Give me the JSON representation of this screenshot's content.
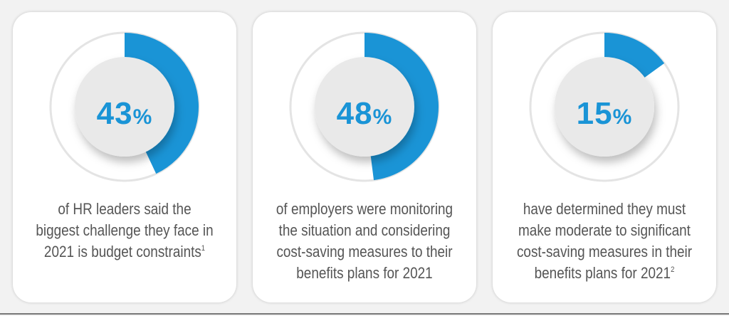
{
  "accent_color": "#1a94d6",
  "chart_data": {
    "type": "pie",
    "stats": [
      {
        "value": 43,
        "label": "43",
        "symbol": "%",
        "text": "of HR leaders said the biggest challenge they face in 2021 is budget constraints",
        "footnote": "1"
      },
      {
        "value": 48,
        "label": "48",
        "symbol": "%",
        "text": "of employers were monitoring the situation and considering cost-saving measures to their benefits plans for 2021",
        "footnote": ""
      },
      {
        "value": 15,
        "label": "15",
        "symbol": "%",
        "text": "have determined they must make moderate to significant cost-saving measures in their benefits plans for 2021",
        "footnote": "2"
      }
    ]
  }
}
